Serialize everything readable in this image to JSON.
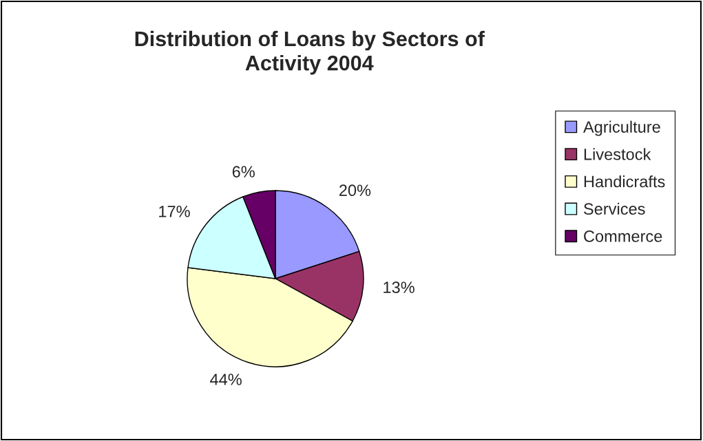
{
  "chart_data": {
    "type": "pie",
    "title": "Distribution of Loans by Sectors of\nActivity 2004",
    "categories": [
      "Agriculture",
      "Livestock",
      "Handicrafts",
      "Services",
      "Commerce"
    ],
    "values": [
      20,
      13,
      44,
      17,
      6
    ],
    "value_labels": [
      "20%",
      "13%",
      "44%",
      "17%",
      "6%"
    ],
    "colors": [
      "#9999ff",
      "#993366",
      "#ffffcc",
      "#ccffff",
      "#660066"
    ],
    "legend": "right"
  }
}
